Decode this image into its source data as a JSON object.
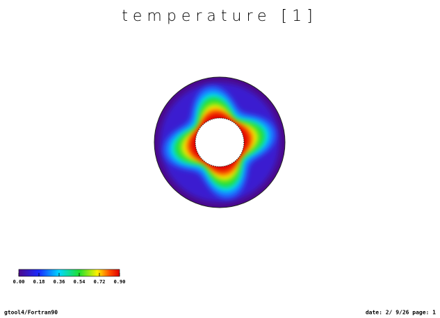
{
  "chart_data": {
    "type": "contour",
    "title": "temperature [1]",
    "clim": [
      0,
      0.9
    ],
    "cticks": [
      {
        "value": 0,
        "label": "0.00"
      },
      {
        "value": 0.18,
        "label": "0.18"
      },
      {
        "value": 0.36,
        "label": "0.36"
      },
      {
        "value": 0.54,
        "label": "0.54"
      },
      {
        "value": 0.72,
        "label": "0.72"
      },
      {
        "value": 0.9,
        "label": "0.90"
      }
    ]
  },
  "footer": {
    "left": "gtool4/Fortran90",
    "right": "date: 2/ 9/26 page: 1"
  }
}
